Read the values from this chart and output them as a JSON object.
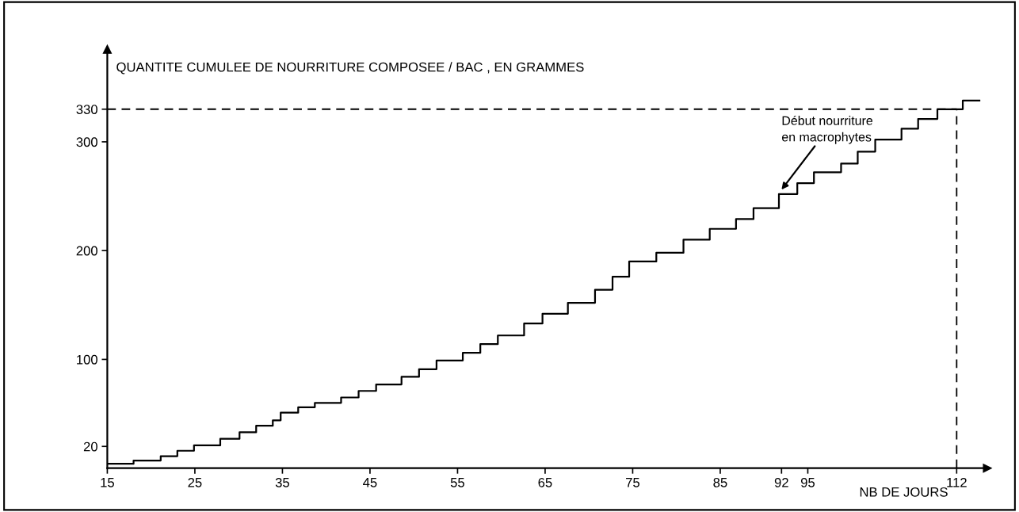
{
  "chart_data": {
    "type": "step",
    "ylabel": "QUANTITE CUMULEE DE NOURRITURE COMPOSEE / BAC , EN GRAMMES",
    "xlabel": "NB DE JOURS",
    "x": [
      15,
      18.0,
      21.1,
      23.0,
      24.9,
      27.9,
      30.1,
      32.0,
      33.9,
      34.8,
      36.8,
      38.7,
      41.7,
      43.7,
      45.7,
      48.6,
      50.6,
      52.6,
      55.6,
      57.6,
      59.6,
      62.6,
      64.7,
      67.6,
      70.7,
      72.7,
      74.6,
      77.7,
      80.8,
      83.8,
      86.8,
      88.8,
      91.7,
      93.8,
      95.7,
      98.8,
      100.7,
      102.7,
      105.7,
      107.6,
      109.8,
      112.7,
      114.6
    ],
    "series": [
      {
        "color": "#000000",
        "values": [
          4,
          7,
          11,
          16,
          21,
          27,
          33,
          39,
          44,
          51,
          56,
          60,
          65,
          71,
          77,
          84,
          91,
          99,
          106,
          114,
          122,
          133,
          142,
          152,
          164,
          176,
          190,
          198,
          210,
          220,
          229,
          239,
          252,
          262,
          272,
          280,
          291,
          302,
          312,
          321,
          330,
          338,
          338
        ]
      }
    ],
    "xlim": [
      15,
      115.5
    ],
    "xticks": [
      15,
      25,
      35,
      45,
      55,
      65,
      75,
      85,
      92,
      95,
      112
    ],
    "ylim": [
      0,
      385
    ],
    "yticks": [
      20,
      100,
      200,
      300,
      330
    ],
    "ref_lines": [
      {
        "axis": "y",
        "value": 330,
        "line_style": "dashed",
        "color": "#000000"
      },
      {
        "axis": "x",
        "value": 112,
        "line_style": "dashed",
        "color": "#000000"
      }
    ],
    "annotations": [
      {
        "text": "Début nourriture\nen macrophytes",
        "x": 92,
        "y": 256
      }
    ],
    "grid": false,
    "legend": false,
    "marker": "none",
    "line_style": "solid"
  }
}
